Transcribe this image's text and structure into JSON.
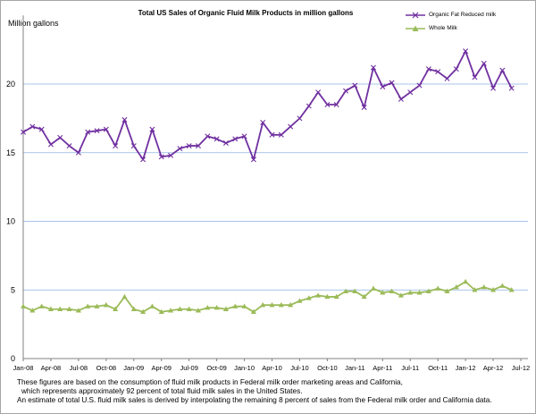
{
  "chart_data": {
    "type": "line",
    "title": "Total US Sales of Organic Fluid Milk Products in million gallons",
    "ylabel": "Million gallons",
    "xlabel": "",
    "ylim": [
      0,
      25
    ],
    "yticks": [
      0,
      5,
      10,
      15,
      20
    ],
    "xtick_labels": [
      "Jan-08",
      "Apr-08",
      "Jul-08",
      "Oct-08",
      "Jan-09",
      "Apr-09",
      "Jul-09",
      "Oct-09",
      "Jan-10",
      "Apr-10",
      "Jul-10",
      "Oct-10",
      "Jan-11",
      "Apr-11",
      "Jul-11",
      "Oct-11",
      "Jan-12",
      "Apr-12",
      "Jul-12"
    ],
    "grid": "horizontal",
    "legend_position": "top-right",
    "series": [
      {
        "name": "Organic Fat Reduced milk",
        "color": "#7030a0",
        "marker": "x",
        "values": [
          16.5,
          16.9,
          16.7,
          15.6,
          16.1,
          15.5,
          15.0,
          16.5,
          16.6,
          16.7,
          15.5,
          17.4,
          15.5,
          14.5,
          16.7,
          14.7,
          14.8,
          15.3,
          15.5,
          15.5,
          16.2,
          16.0,
          15.7,
          16.0,
          16.2,
          14.5,
          17.2,
          16.3,
          16.3,
          16.9,
          17.5,
          18.4,
          19.4,
          18.5,
          18.5,
          19.5,
          19.9,
          18.3,
          21.2,
          19.8,
          20.1,
          18.9,
          19.4,
          19.9,
          21.1,
          20.9,
          20.4,
          21.1,
          22.4,
          20.5,
          21.5,
          19.7,
          21.0,
          19.7
        ]
      },
      {
        "name": "Whole Milk",
        "color": "#9bbb59",
        "marker": "triangle",
        "values": [
          3.8,
          3.5,
          3.8,
          3.6,
          3.6,
          3.6,
          3.5,
          3.8,
          3.8,
          3.9,
          3.6,
          4.5,
          3.6,
          3.4,
          3.8,
          3.4,
          3.5,
          3.6,
          3.6,
          3.5,
          3.7,
          3.7,
          3.6,
          3.8,
          3.8,
          3.4,
          3.9,
          3.9,
          3.9,
          3.9,
          4.2,
          4.4,
          4.6,
          4.5,
          4.5,
          4.9,
          4.9,
          4.5,
          5.1,
          4.8,
          4.9,
          4.6,
          4.8,
          4.8,
          4.9,
          5.1,
          4.9,
          5.2,
          5.6,
          5.0,
          5.2,
          5.0,
          5.3,
          5.0
        ]
      }
    ]
  },
  "notes": [
    "These figures are based on the consumption of fluid milk products in Federal milk order marketing areas and California,",
    "which represents approximately 92 percent of total fluid milk sales in the United States.",
    "An estimate of total U.S. fluid milk sales is derived by interpolating the remaining 8 percent of sales from the Federal milk order and California data."
  ]
}
